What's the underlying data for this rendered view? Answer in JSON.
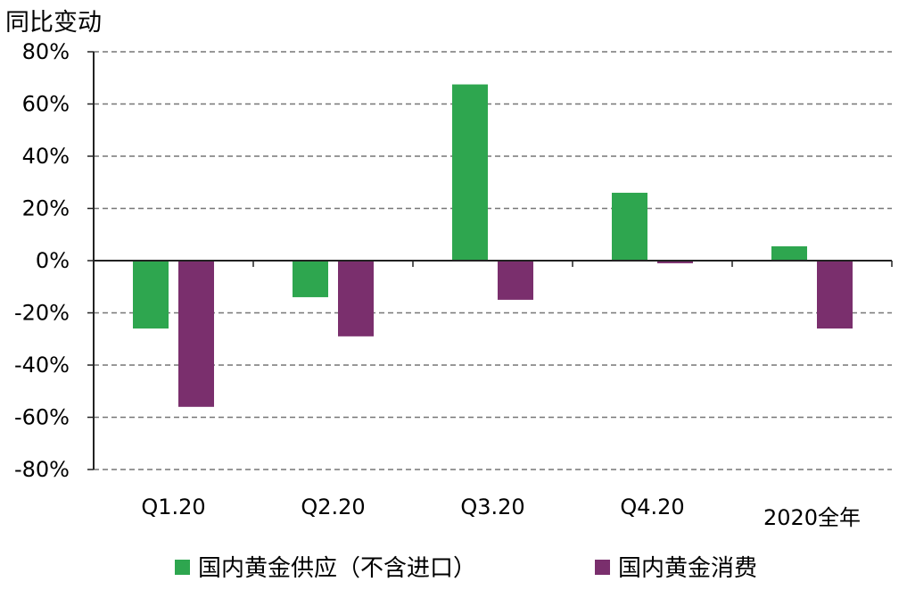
{
  "chart_data": {
    "type": "bar",
    "ylabel": "同比变动",
    "ylim": [
      -80,
      80
    ],
    "y_ticks": [
      "80%",
      "60%",
      "40%",
      "20%",
      "0%",
      "-20%",
      "-40%",
      "-60%",
      "-80%"
    ],
    "categories": [
      "Q1.20",
      "Q2.20",
      "Q3.20",
      "Q4.20",
      "2020全年"
    ],
    "series": [
      {
        "name": "国内黄金供应（不含进口）",
        "color": "#2ea64f",
        "values": [
          -26,
          -14,
          67.5,
          26,
          5.5
        ]
      },
      {
        "name": "国内黄金消费",
        "color": "#7a2f6d",
        "values": [
          -56,
          -29,
          -15,
          -1,
          -26
        ]
      }
    ],
    "grid": true,
    "legend_position": "bottom"
  }
}
